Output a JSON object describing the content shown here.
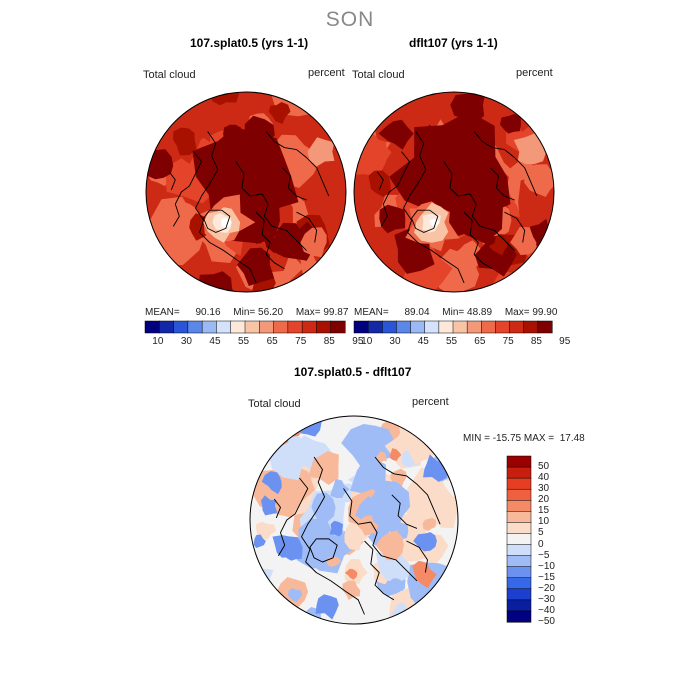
{
  "season": "SON",
  "colors": {
    "abs_scale": [
      "#00007f",
      "#1427a6",
      "#2a55d6",
      "#5b86ea",
      "#9ab9f5",
      "#d4e2fb",
      "#fde8da",
      "#f9c4a6",
      "#f4987a",
      "#ee6a4a",
      "#e4442a",
      "#cc2a14",
      "#a81000",
      "#7f0000"
    ],
    "diff_scale": [
      "#000080",
      "#0a1ea0",
      "#1d3fd0",
      "#3768e8",
      "#6c92f1",
      "#9fbcf6",
      "#cfdffa",
      "#f3f3f3",
      "#fbdcc8",
      "#f8b89a",
      "#f48a66",
      "#ef6040",
      "#e63e22",
      "#c81e0e",
      "#9a0000"
    ]
  },
  "panels": [
    {
      "title": "107.splat0.5 (yrs 1-1)",
      "left_label": "Total cloud",
      "right_label": "percent",
      "stats": {
        "mean_label": "MEAN=",
        "mean": "90.16",
        "min_label": "Min=",
        "min": "56.20",
        "max_label": "Max=",
        "max": "99.87"
      }
    },
    {
      "title": "dflt107 (yrs 1-1)",
      "left_label": "Total cloud",
      "right_label": "percent",
      "stats": {
        "mean_label": "MEAN=",
        "mean": "89.04",
        "min_label": "Min=",
        "min": "48.89",
        "max_label": "Max=",
        "max": "99.90"
      }
    }
  ],
  "abs_colorbar_ticks": [
    "10",
    "30",
    "45",
    "55",
    "65",
    "75",
    "85",
    "95"
  ],
  "diff_panel": {
    "title": "107.splat0.5 - dflt107",
    "left_label": "Total cloud",
    "right_label": "percent",
    "minmax": "MIN = -15.75 MAX =  17.48",
    "colorbar_ticks": [
      "50",
      "40",
      "30",
      "20",
      "15",
      "10",
      "5",
      "0",
      "−5",
      "−10",
      "−15",
      "−20",
      "−30",
      "−40",
      "−50"
    ]
  }
}
